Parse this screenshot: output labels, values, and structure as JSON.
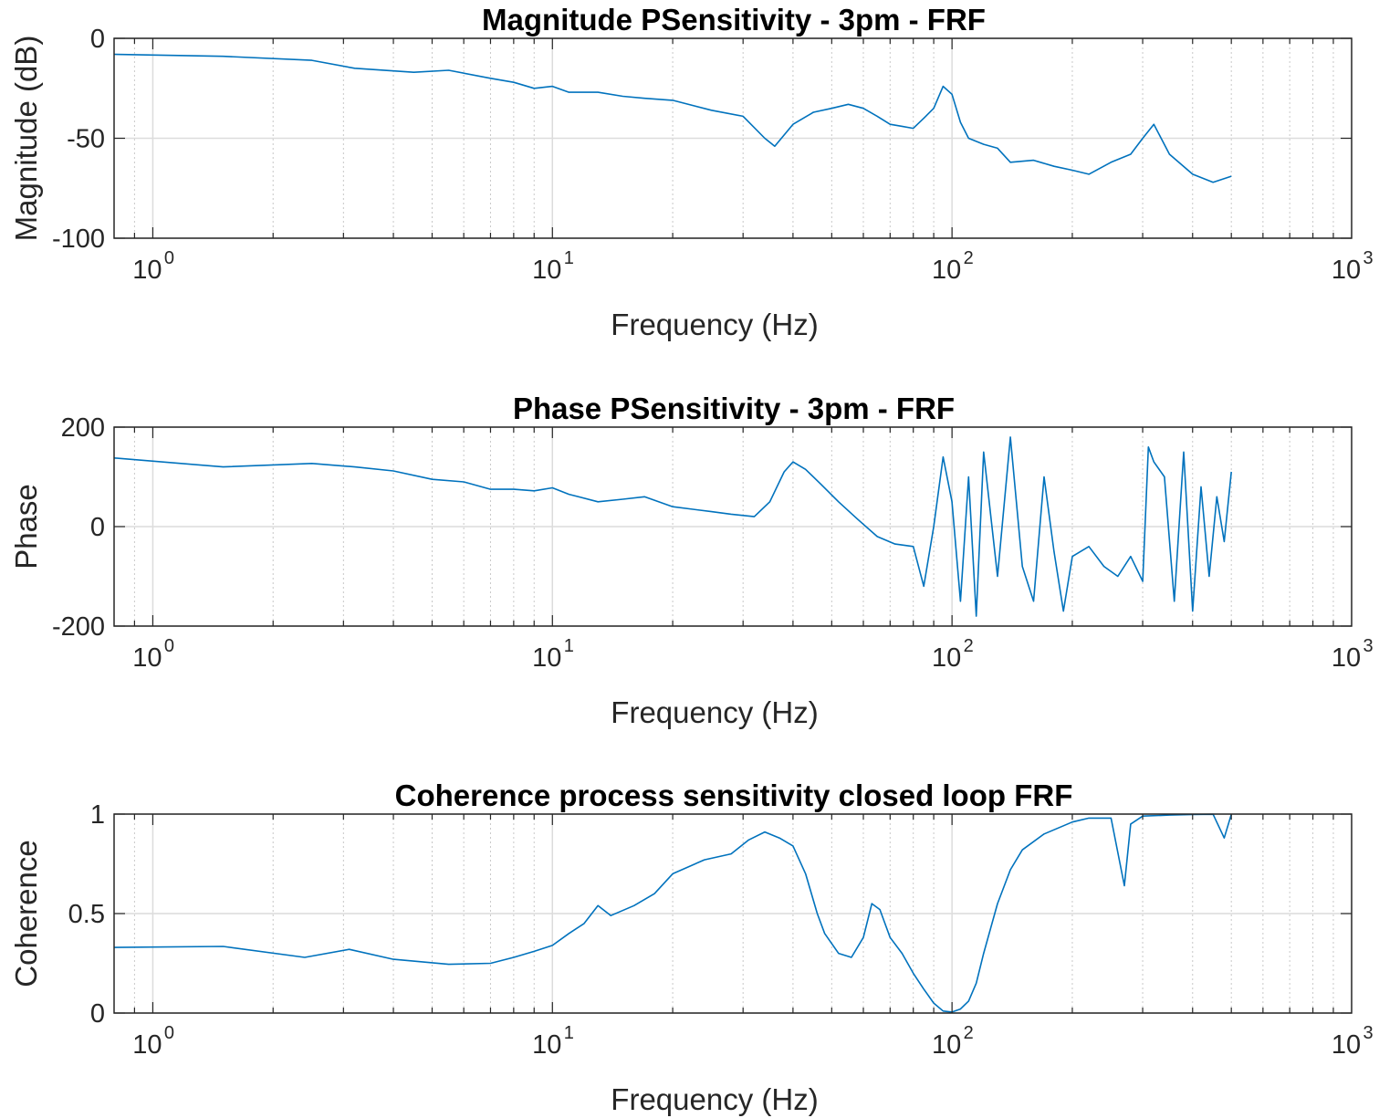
{
  "colors": {
    "line": "#0072BD",
    "axis": "#262626",
    "grid_major": "#dcdcdc",
    "grid_minor": "#c8c8c8"
  },
  "chart_data": [
    {
      "type": "line",
      "title": "Magnitude PSensitivity - 3pm - FRF",
      "xlabel": "Frequency (Hz)",
      "ylabel": "Magnitude (dB)",
      "xscale": "log",
      "xlim": [
        0.8,
        1000
      ],
      "ylim": [
        -100,
        0
      ],
      "xtick_labels": [
        {
          "base": "10",
          "exp": "0"
        },
        {
          "base": "10",
          "exp": "1"
        },
        {
          "base": "10",
          "exp": "2"
        },
        {
          "base": "10",
          "exp": "3"
        }
      ],
      "yticks": [
        "0",
        "-50",
        "-100"
      ],
      "grid": true,
      "series": [
        {
          "x": [
            0.8,
            1.5,
            2.5,
            3.2,
            4.5,
            5.5,
            7,
            8,
            9,
            10,
            11,
            13,
            15,
            17,
            20,
            25,
            30,
            34,
            36,
            40,
            45,
            50,
            55,
            60,
            65,
            70,
            75,
            80,
            85,
            90,
            95,
            100,
            105,
            110,
            120,
            130,
            140,
            160,
            180,
            200,
            220,
            250,
            280,
            300,
            320,
            350,
            400,
            450,
            500
          ],
          "y": [
            -8,
            -9,
            -11,
            -15,
            -17,
            -16,
            -20,
            -22,
            -25,
            -24,
            -27,
            -27,
            -29,
            -30,
            -31,
            -36,
            -39,
            -50,
            -54,
            -43,
            -37,
            -35,
            -33,
            -35,
            -39,
            -43,
            -44,
            -45,
            -40,
            -35,
            -24,
            -28,
            -42,
            -50,
            -53,
            -55,
            -62,
            -61,
            -64,
            -66,
            -68,
            -62,
            -58,
            -50,
            -43,
            -58,
            -68,
            -72,
            -69
          ]
        }
      ]
    },
    {
      "type": "line",
      "title": "Phase PSensitivity - 3pm - FRF",
      "xlabel": "Frequency (Hz)",
      "ylabel": "Phase",
      "xscale": "log",
      "xlim": [
        0.8,
        1000
      ],
      "ylim": [
        -200,
        200
      ],
      "xtick_labels": [
        {
          "base": "10",
          "exp": "0"
        },
        {
          "base": "10",
          "exp": "1"
        },
        {
          "base": "10",
          "exp": "2"
        },
        {
          "base": "10",
          "exp": "3"
        }
      ],
      "yticks": [
        "200",
        "0",
        "-200"
      ],
      "grid": true,
      "series": [
        {
          "x": [
            0.8,
            1.5,
            2.5,
            3.2,
            4,
            5,
            6,
            7,
            8,
            9,
            10,
            11,
            13,
            15,
            17,
            20,
            25,
            28,
            32,
            35,
            38,
            40,
            43,
            47,
            52,
            58,
            65,
            72,
            80,
            85,
            90,
            95,
            100,
            105,
            110,
            115,
            120,
            130,
            140,
            150,
            160,
            170,
            180,
            190,
            200,
            220,
            240,
            260,
            280,
            300,
            310,
            320,
            340,
            360,
            380,
            400,
            420,
            440,
            460,
            480,
            500
          ],
          "y": [
            138,
            120,
            127,
            120,
            112,
            95,
            90,
            75,
            75,
            72,
            78,
            65,
            50,
            55,
            60,
            40,
            30,
            25,
            20,
            50,
            110,
            130,
            115,
            85,
            50,
            15,
            -20,
            -35,
            -40,
            -120,
            0,
            140,
            50,
            -150,
            100,
            -180,
            150,
            -100,
            180,
            -80,
            -150,
            100,
            -50,
            -170,
            -60,
            -40,
            -80,
            -100,
            -60,
            -110,
            160,
            130,
            100,
            -150,
            150,
            -170,
            80,
            -100,
            60,
            -30,
            110
          ]
        }
      ]
    },
    {
      "type": "line",
      "title": "Coherence process sensitivity closed loop FRF",
      "xlabel": "Frequency (Hz)",
      "ylabel": "Coherence",
      "xscale": "log",
      "xlim": [
        0.8,
        1000
      ],
      "ylim": [
        0,
        1
      ],
      "xtick_labels": [
        {
          "base": "10",
          "exp": "0"
        },
        {
          "base": "10",
          "exp": "1"
        },
        {
          "base": "10",
          "exp": "2"
        },
        {
          "base": "10",
          "exp": "3"
        }
      ],
      "yticks": [
        "1",
        "0.5",
        "0"
      ],
      "grid": true,
      "series": [
        {
          "x": [
            0.8,
            1.5,
            2.4,
            3.1,
            4,
            5.5,
            7,
            8,
            9,
            10,
            11,
            12,
            13,
            14,
            16,
            18,
            20,
            24,
            28,
            31,
            34,
            37,
            40,
            43,
            46,
            48,
            52,
            56,
            60,
            63,
            66,
            70,
            75,
            80,
            85,
            90,
            95,
            100,
            105,
            110,
            115,
            120,
            130,
            140,
            150,
            170,
            200,
            220,
            250,
            270,
            280,
            300,
            350,
            400,
            450,
            480,
            500
          ],
          "y": [
            0.33,
            0.335,
            0.28,
            0.32,
            0.27,
            0.245,
            0.25,
            0.28,
            0.31,
            0.34,
            0.4,
            0.45,
            0.54,
            0.49,
            0.54,
            0.6,
            0.7,
            0.77,
            0.8,
            0.87,
            0.91,
            0.88,
            0.84,
            0.7,
            0.5,
            0.4,
            0.3,
            0.28,
            0.38,
            0.55,
            0.52,
            0.38,
            0.3,
            0.2,
            0.12,
            0.05,
            0.01,
            0.005,
            0.02,
            0.06,
            0.15,
            0.3,
            0.55,
            0.72,
            0.82,
            0.9,
            0.96,
            0.98,
            0.98,
            0.64,
            0.95,
            0.99,
            0.995,
            0.998,
            0.999,
            0.88,
            0.999
          ]
        }
      ]
    }
  ]
}
